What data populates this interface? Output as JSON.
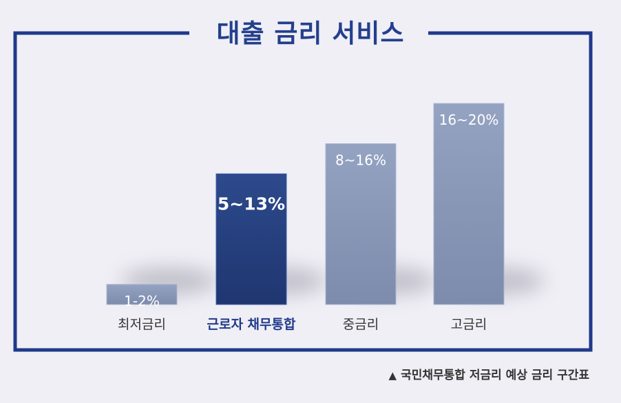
{
  "title": "대출 금리 서비스",
  "caption": {
    "marker": "▲",
    "text": "국민채무통합 저금리 예상 금리 구간표"
  },
  "colors": {
    "frame": "#1f3a8a",
    "bar_normal": "#8a98b8",
    "bar_highlight": "#253f7e",
    "category_text": "#333333",
    "category_highlight": "#1f3a8a"
  },
  "chart_data": {
    "type": "bar",
    "categories": [
      "최저금리",
      "근로자 채무통합",
      "중금리",
      "고금리"
    ],
    "labels": [
      "1-2%",
      "5~13%",
      "8~16%",
      "16~20%"
    ],
    "ranges": [
      [
        1,
        2
      ],
      [
        5,
        13
      ],
      [
        8,
        16
      ],
      [
        16,
        20
      ]
    ],
    "values": [
      2,
      13,
      16,
      20
    ],
    "highlight_index": 1,
    "ylim": [
      0,
      22
    ],
    "grid": false,
    "legend": "none"
  }
}
